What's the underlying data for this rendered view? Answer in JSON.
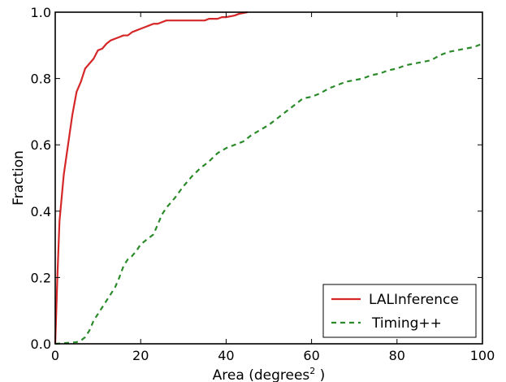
{
  "chart_data": {
    "type": "line",
    "title": "",
    "xlabel": "Area (degrees",
    "xlabel_superscript": "2",
    "xlabel_suffix": " )",
    "ylabel": "Fraction",
    "xlim": [
      0,
      100
    ],
    "ylim": [
      0.0,
      1.0
    ],
    "xticks": [
      0,
      20,
      40,
      60,
      80,
      100
    ],
    "xtick_labels": [
      "0",
      "20",
      "40",
      "60",
      "80",
      "100"
    ],
    "yticks": [
      0.0,
      0.2,
      0.4,
      0.6,
      0.8,
      1.0
    ],
    "ytick_labels": [
      "0.0",
      "0.2",
      "0.4",
      "0.6",
      "0.8",
      "1.0"
    ],
    "grid": false,
    "legend_position": "bottom-right",
    "series": [
      {
        "name": "LALInference",
        "color": "#d62728",
        "style": "solid",
        "x": [
          0,
          0.5,
          1,
          2,
          3,
          4,
          5,
          6,
          7,
          8,
          9,
          10,
          11,
          12,
          13,
          14,
          15,
          16,
          17,
          18,
          19,
          20,
          21,
          22,
          23,
          24,
          25,
          26,
          27,
          30,
          35,
          36,
          38,
          39,
          40,
          42,
          43,
          45
        ],
        "y": [
          0.0,
          0.2,
          0.37,
          0.51,
          0.6,
          0.69,
          0.76,
          0.79,
          0.83,
          0.845,
          0.86,
          0.885,
          0.89,
          0.905,
          0.915,
          0.92,
          0.925,
          0.93,
          0.93,
          0.94,
          0.945,
          0.95,
          0.955,
          0.96,
          0.965,
          0.965,
          0.97,
          0.975,
          0.975,
          0.975,
          0.975,
          0.98,
          0.98,
          0.985,
          0.985,
          0.99,
          0.995,
          1.0
        ]
      },
      {
        "name": "Timing++",
        "color": "#2a8a2a",
        "style": "dashed",
        "x": [
          0,
          5,
          6,
          7,
          8,
          9,
          10,
          11,
          12,
          13,
          14,
          15,
          16,
          17,
          18,
          19,
          20,
          21,
          22,
          23,
          24,
          25,
          26,
          27,
          28,
          30,
          32,
          34,
          36,
          38,
          40,
          42,
          44,
          46,
          48,
          50,
          52,
          54,
          56,
          58,
          60,
          62,
          64,
          66,
          68,
          70,
          72,
          74,
          76,
          78,
          80,
          82,
          84,
          86,
          88,
          90,
          92,
          94,
          96,
          98,
          100
        ],
        "y": [
          0.0,
          0.005,
          0.01,
          0.02,
          0.04,
          0.07,
          0.09,
          0.11,
          0.13,
          0.15,
          0.17,
          0.2,
          0.235,
          0.255,
          0.265,
          0.28,
          0.3,
          0.31,
          0.32,
          0.33,
          0.36,
          0.39,
          0.41,
          0.425,
          0.44,
          0.475,
          0.505,
          0.53,
          0.55,
          0.575,
          0.59,
          0.6,
          0.61,
          0.63,
          0.645,
          0.66,
          0.68,
          0.7,
          0.72,
          0.74,
          0.745,
          0.755,
          0.77,
          0.78,
          0.79,
          0.795,
          0.8,
          0.81,
          0.815,
          0.825,
          0.83,
          0.84,
          0.845,
          0.85,
          0.855,
          0.87,
          0.88,
          0.885,
          0.89,
          0.895,
          0.905
        ]
      }
    ]
  }
}
